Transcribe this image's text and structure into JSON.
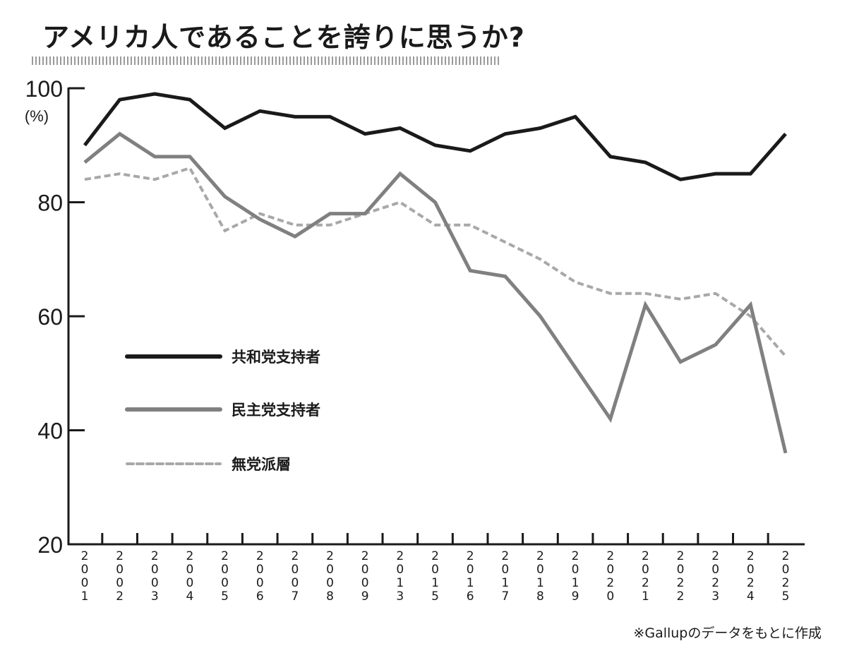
{
  "chart_data": {
    "type": "line",
    "title": "アメリカ人であることを誇りに思うか?",
    "ylabel": "(%)",
    "ylim": [
      20,
      100
    ],
    "yticks": [
      "100",
      "80",
      "60",
      "40",
      "20"
    ],
    "grid": false,
    "legend_placement": "center-left",
    "x": [
      "2001",
      "2002",
      "2003",
      "2004",
      "2005",
      "2006",
      "2007",
      "2008",
      "2009",
      "2013",
      "2015",
      "2016",
      "2017",
      "2018",
      "2019",
      "2020",
      "2021",
      "2022",
      "2023",
      "2024",
      "2025"
    ],
    "series": [
      {
        "name": "共和党支持者",
        "color": "#1a1a1a",
        "style": "solid",
        "values": [
          90,
          98,
          99,
          98,
          93,
          96,
          95,
          95,
          92,
          93,
          90,
          89,
          92,
          93,
          95,
          88,
          87,
          84,
          85,
          85,
          92
        ]
      },
      {
        "name": "民主党支持者",
        "color": "#808080",
        "style": "solid",
        "values": [
          87,
          92,
          88,
          88,
          81,
          77,
          74,
          78,
          78,
          85,
          80,
          68,
          67,
          60,
          51,
          42,
          62,
          52,
          55,
          62,
          36
        ]
      },
      {
        "name": "無党派層",
        "color": "#a8a8a8",
        "style": "dashed",
        "values": [
          84,
          85,
          84,
          86,
          75,
          78,
          76,
          76,
          78,
          80,
          76,
          76,
          73,
          70,
          66,
          64,
          64,
          63,
          64,
          60,
          53
        ]
      }
    ],
    "source": "※Gallupのデータをもとに作成"
  }
}
